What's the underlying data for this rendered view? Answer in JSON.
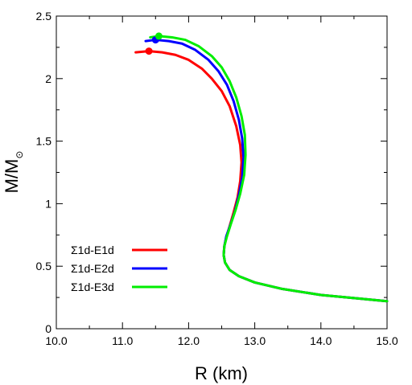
{
  "chart_data": {
    "type": "line",
    "xlabel": "R (km)",
    "ylabel": "M/M",
    "ylabel_subscript": "⊙",
    "xlim": [
      10.0,
      15.0
    ],
    "ylim": [
      0,
      2.5
    ],
    "xticks": [
      10.0,
      11.0,
      12.0,
      13.0,
      14.0,
      15.0
    ],
    "xtick_labels": [
      "10.0",
      "11.0",
      "12.0",
      "13.0",
      "14.0",
      "15.0"
    ],
    "yticks": [
      0,
      0.5,
      1,
      1.5,
      2,
      2.5
    ],
    "ytick_labels": [
      "0",
      "0.5",
      "1",
      "1.5",
      "2",
      "2.5"
    ],
    "grid": false,
    "legend_position": "bottom-left",
    "series": [
      {
        "name": "Σ1d-E1d",
        "color": "#ff0000",
        "x": [
          11.2,
          11.4,
          11.6,
          11.8,
          12.0,
          12.2,
          12.35,
          12.5,
          12.62,
          12.72,
          12.78,
          12.8,
          12.78,
          12.74,
          12.68,
          12.62,
          12.57,
          12.54,
          12.53,
          12.55,
          12.62,
          12.76,
          13.0,
          13.4,
          14.0,
          14.6,
          15.0
        ],
        "y": [
          2.21,
          2.22,
          2.21,
          2.19,
          2.15,
          2.08,
          2.0,
          1.9,
          1.78,
          1.62,
          1.47,
          1.33,
          1.18,
          1.05,
          0.93,
          0.82,
          0.73,
          0.66,
          0.59,
          0.53,
          0.47,
          0.42,
          0.37,
          0.32,
          0.27,
          0.24,
          0.22
        ]
      },
      {
        "name": "Σ1d-E2d",
        "color": "#0000ff",
        "x": [
          11.35,
          11.5,
          11.7,
          11.9,
          12.1,
          12.3,
          12.45,
          12.58,
          12.68,
          12.76,
          12.81,
          12.83,
          12.81,
          12.76,
          12.7,
          12.63,
          12.57,
          12.54,
          12.53,
          12.55,
          12.62,
          12.76,
          13.0,
          13.4,
          14.0,
          14.6,
          15.0
        ],
        "y": [
          2.3,
          2.31,
          2.3,
          2.28,
          2.23,
          2.15,
          2.06,
          1.95,
          1.82,
          1.67,
          1.52,
          1.37,
          1.21,
          1.07,
          0.94,
          0.83,
          0.74,
          0.66,
          0.59,
          0.53,
          0.47,
          0.42,
          0.37,
          0.32,
          0.27,
          0.24,
          0.22
        ]
      },
      {
        "name": "Σ1d-E3d",
        "color": "#00ee00",
        "x": [
          11.42,
          11.55,
          11.75,
          11.95,
          12.15,
          12.35,
          12.5,
          12.62,
          12.72,
          12.8,
          12.85,
          12.86,
          12.84,
          12.78,
          12.71,
          12.64,
          12.58,
          12.54,
          12.53,
          12.55,
          12.62,
          12.76,
          13.0,
          13.4,
          14.0,
          14.6,
          15.0
        ],
        "y": [
          2.33,
          2.34,
          2.33,
          2.31,
          2.26,
          2.18,
          2.09,
          1.98,
          1.85,
          1.7,
          1.55,
          1.39,
          1.23,
          1.08,
          0.95,
          0.84,
          0.74,
          0.66,
          0.59,
          0.53,
          0.47,
          0.42,
          0.37,
          0.32,
          0.27,
          0.24,
          0.22
        ]
      }
    ],
    "markers": [
      {
        "series": "Σ1d-E1d",
        "x": 11.4,
        "y": 2.22
      },
      {
        "series": "Σ1d-E2d",
        "x": 11.5,
        "y": 2.31
      },
      {
        "series": "Σ1d-E3d",
        "x": 11.55,
        "y": 2.34
      }
    ]
  }
}
